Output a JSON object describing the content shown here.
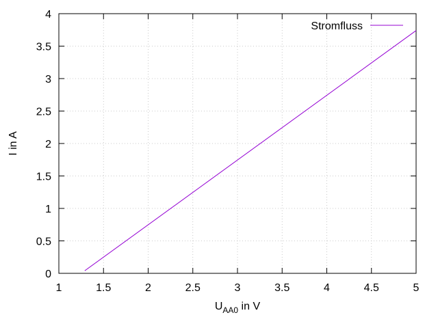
{
  "chart_data": {
    "type": "line",
    "xlabel_main": "U",
    "xlabel_sub": "AA0",
    "xlabel_rest": " in V",
    "ylabel": "I in A",
    "xlim": [
      1,
      5
    ],
    "ylim": [
      0,
      4
    ],
    "xticks": [
      "1",
      "1.5",
      "2",
      "2.5",
      "3",
      "3.5",
      "4",
      "4.5",
      "5"
    ],
    "yticks": [
      "0",
      "0.5",
      "1",
      "1.5",
      "2",
      "2.5",
      "3",
      "3.5",
      "4"
    ],
    "grid": true,
    "legend_position": "top-right",
    "series": [
      {
        "name": "Stromfluss",
        "color": "#9400d3",
        "x": [
          1.29,
          5.0
        ],
        "y": [
          0.04,
          3.74
        ]
      }
    ]
  }
}
